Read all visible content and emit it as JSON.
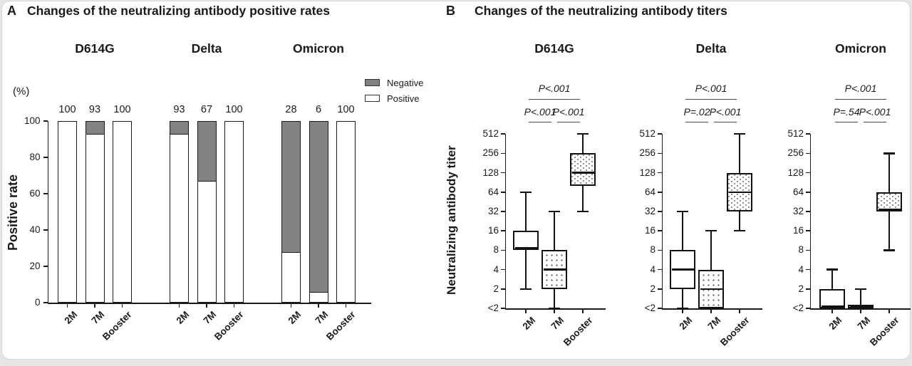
{
  "figure": {
    "panel_a": {
      "letter": "A",
      "title": "Changes of the neutralizing antibody positive rates",
      "y_axis": {
        "label": "Positive rate",
        "unit": "(%)"
      }
    },
    "panel_b": {
      "letter": "B",
      "title": "Changes of the neutralizing antibody titers",
      "y_axis": {
        "label": "Neutralizing antibody titer"
      }
    }
  },
  "chart_data": [
    {
      "type": "bar",
      "subtype": "stacked-100-percent",
      "title": "Changes of the neutralizing antibody positive rates",
      "xlabel": "",
      "ylabel": "Positive rate",
      "y_unit": "(%)",
      "ylim": [
        0,
        100
      ],
      "yticks": [
        0,
        20,
        40,
        60,
        80,
        100
      ],
      "categories": [
        "2M",
        "7M",
        "Booster"
      ],
      "groups": [
        {
          "name": "D614G",
          "positive": [
            100,
            93,
            100
          ],
          "negative": [
            0,
            7,
            0
          ]
        },
        {
          "name": "Delta",
          "positive": [
            93,
            67,
            100
          ],
          "negative": [
            7,
            33,
            0
          ]
        },
        {
          "name": "Omicron",
          "positive": [
            28,
            6,
            100
          ],
          "negative": [
            72,
            94,
            0
          ]
        }
      ],
      "series_legend": [
        {
          "name": "Negative",
          "fill": "#828282"
        },
        {
          "name": "Positive",
          "fill": "#ffffff"
        }
      ]
    },
    {
      "type": "box",
      "title": "Changes of the neutralizing antibody titers",
      "ylabel": "Neutralizing antibody titer",
      "yscale": "log2",
      "yticks": [
        "512",
        "256",
        "128",
        "64",
        "32",
        "16",
        "8",
        "4",
        "2",
        "<2"
      ],
      "floor_label": "<2",
      "floor_value": 1,
      "categories": [
        "2M",
        "7M",
        "Booster"
      ],
      "panels": [
        {
          "name": "D614G",
          "p_values": {
            "pair_left": "P<.001",
            "pair_right": "P<.001",
            "overall": "P<.001"
          },
          "boxes": [
            {
              "category": "2M",
              "whisker_low": 2,
              "q1": 8,
              "median": 8,
              "q3": 16,
              "whisker_high": 64,
              "fill": "white"
            },
            {
              "category": "7M",
              "whisker_low": 1,
              "q1": 2,
              "median": 4,
              "q3": 8,
              "whisker_high": 32,
              "fill": "dots"
            },
            {
              "category": "Booster",
              "whisker_low": 32,
              "q1": 80,
              "median": 128,
              "q3": 256,
              "whisker_high": 512,
              "fill": "scales"
            }
          ]
        },
        {
          "name": "Delta",
          "p_values": {
            "pair_left": "P=.02",
            "pair_right": "P<.001",
            "overall": "P<.001"
          },
          "boxes": [
            {
              "category": "2M",
              "whisker_low": 1,
              "q1": 2,
              "median": 4,
              "q3": 8,
              "whisker_high": 32,
              "fill": "white"
            },
            {
              "category": "7M",
              "whisker_low": 1,
              "q1": 1,
              "median": 2,
              "q3": 4,
              "whisker_high": 16,
              "fill": "dots"
            },
            {
              "category": "Booster",
              "whisker_low": 16,
              "q1": 32,
              "median": 64,
              "q3": 128,
              "whisker_high": 512,
              "fill": "scales"
            }
          ]
        },
        {
          "name": "Omicron",
          "p_values": {
            "pair_left": "P=.54",
            "pair_right": "P<.001",
            "overall": "P<.001"
          },
          "boxes": [
            {
              "category": "2M",
              "whisker_low": 1,
              "q1": 1,
              "median": 1,
              "q3": 2,
              "whisker_high": 4,
              "fill": "white"
            },
            {
              "category": "7M",
              "whisker_low": 1,
              "q1": 1,
              "median": 1,
              "q3": 1,
              "whisker_high": 2,
              "fill": "dots"
            },
            {
              "category": "Booster",
              "whisker_low": 8,
              "q1": 32,
              "median": 32,
              "q3": 64,
              "whisker_high": 256,
              "fill": "scales"
            }
          ]
        }
      ]
    }
  ]
}
